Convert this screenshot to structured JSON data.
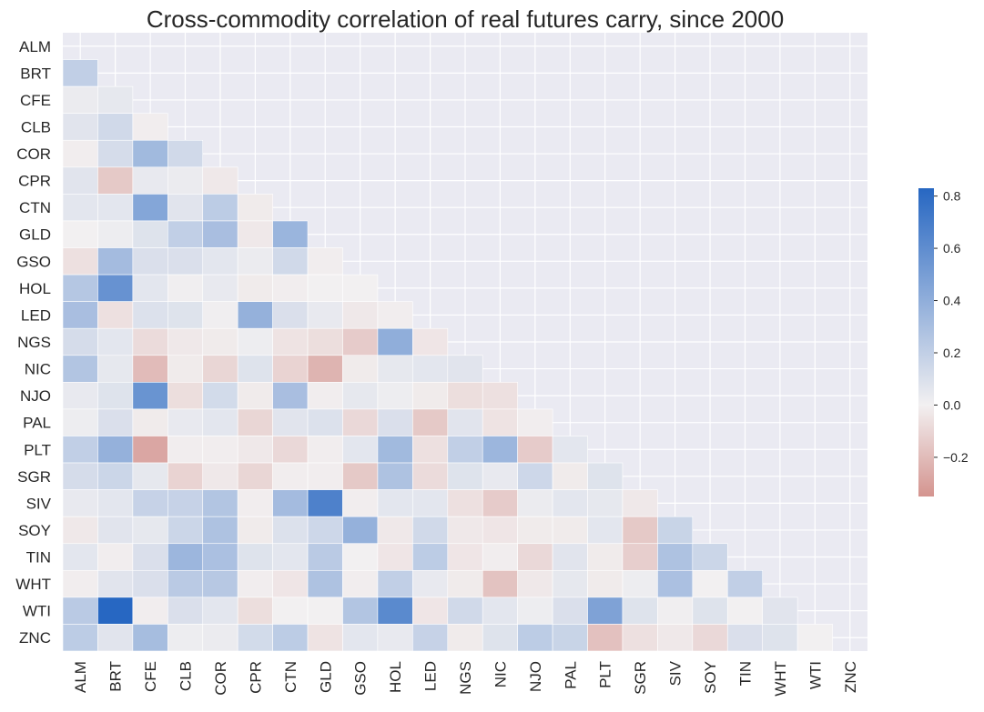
{
  "chart_data": {
    "type": "heatmap",
    "title": "Cross-commodity correlation of real futures carry, since 2000",
    "labels": [
      "ALM",
      "BRT",
      "CFE",
      "CLB",
      "COR",
      "CPR",
      "CTN",
      "GLD",
      "GSO",
      "HOL",
      "LED",
      "NGS",
      "NIC",
      "NJO",
      "PAL",
      "PLT",
      "SGR",
      "SIV",
      "SOY",
      "TIN",
      "WHT",
      "WTI",
      "ZNC"
    ],
    "mask": "upper-triangle-and-diagonal",
    "colorbar": {
      "min": -0.35,
      "max": 0.83,
      "ticks": [
        0.8,
        0.6,
        0.4,
        0.2,
        0.0,
        -0.2
      ],
      "tick_labels": [
        "0.8",
        "0.6",
        "0.4",
        "0.2",
        "0.0",
        "−0.2"
      ],
      "low_color": "#d4948f",
      "mid_color": "#f2f0f1",
      "high_color": "#2767c2",
      "placement": "right"
    },
    "lower_triangle": [
      [
        0.2
      ],
      [
        0.03,
        0.05
      ],
      [
        0.07,
        0.14,
        -0.01
      ],
      [
        -0.01,
        0.12,
        0.33,
        0.14
      ],
      [
        0.07,
        -0.15,
        0.04,
        0.03,
        -0.03
      ],
      [
        0.06,
        0.06,
        0.45,
        0.07,
        0.22,
        -0.02
      ],
      [
        0.0,
        0.02,
        0.08,
        0.2,
        0.3,
        -0.03,
        0.36
      ],
      [
        -0.06,
        0.32,
        0.1,
        0.1,
        0.06,
        0.03,
        0.14,
        -0.01
      ],
      [
        0.25,
        0.57,
        0.06,
        0.01,
        0.04,
        -0.02,
        -0.01,
        0.0,
        0.0
      ],
      [
        0.3,
        -0.06,
        0.09,
        0.08,
        0.01,
        0.38,
        0.1,
        0.04,
        -0.03,
        -0.01
      ],
      [
        0.12,
        0.06,
        -0.08,
        -0.03,
        -0.02,
        0.02,
        -0.05,
        -0.07,
        -0.14,
        0.4,
        -0.04
      ],
      [
        0.26,
        0.05,
        -0.2,
        -0.02,
        -0.1,
        0.08,
        -0.11,
        -0.23,
        -0.02,
        0.05,
        0.06,
        0.07
      ],
      [
        0.04,
        0.08,
        0.56,
        -0.07,
        0.13,
        -0.02,
        0.3,
        -0.01,
        0.05,
        0.02,
        -0.02,
        -0.07,
        -0.06
      ],
      [
        0.02,
        0.1,
        -0.02,
        0.04,
        0.06,
        -0.1,
        0.07,
        0.09,
        -0.09,
        0.1,
        -0.15,
        0.07,
        -0.05,
        -0.01
      ],
      [
        0.2,
        0.38,
        -0.28,
        -0.01,
        -0.01,
        -0.03,
        -0.09,
        -0.01,
        0.06,
        0.33,
        -0.06,
        0.2,
        0.35,
        -0.14,
        0.06
      ],
      [
        0.12,
        0.16,
        0.05,
        -0.11,
        -0.03,
        -0.1,
        -0.01,
        -0.01,
        -0.15,
        0.28,
        -0.08,
        0.08,
        0.04,
        0.15,
        -0.02,
        0.08
      ],
      [
        0.04,
        0.06,
        0.18,
        0.18,
        0.26,
        -0.01,
        0.32,
        0.67,
        -0.01,
        0.06,
        0.06,
        -0.06,
        -0.14,
        0.03,
        0.06,
        0.05,
        -0.03
      ],
      [
        -0.03,
        0.07,
        0.05,
        0.16,
        0.28,
        -0.02,
        0.09,
        0.15,
        0.38,
        -0.03,
        0.14,
        -0.03,
        -0.04,
        -0.02,
        -0.02,
        0.06,
        -0.15,
        0.17
      ],
      [
        0.06,
        -0.01,
        0.1,
        0.35,
        0.29,
        0.08,
        0.06,
        0.23,
        0.0,
        -0.04,
        0.22,
        -0.04,
        -0.01,
        -0.09,
        0.07,
        -0.02,
        -0.13,
        0.28,
        0.16
      ],
      [
        -0.01,
        0.07,
        0.1,
        0.23,
        0.24,
        -0.01,
        -0.04,
        0.28,
        -0.01,
        0.2,
        0.04,
        -0.02,
        -0.17,
        -0.03,
        0.05,
        -0.02,
        0.02,
        0.29,
        0.0,
        0.2
      ],
      [
        0.23,
        0.83,
        -0.01,
        0.1,
        0.06,
        -0.07,
        0.0,
        0.0,
        0.26,
        0.62,
        -0.04,
        0.14,
        0.06,
        0.02,
        0.1,
        0.47,
        0.08,
        0.01,
        0.08,
        0.0,
        0.07
      ],
      [
        0.22,
        0.07,
        0.31,
        0.02,
        0.03,
        0.13,
        0.22,
        -0.05,
        0.06,
        0.04,
        0.18,
        -0.02,
        0.08,
        0.22,
        0.17,
        -0.18,
        -0.06,
        -0.03,
        -0.09,
        0.1,
        0.08,
        0.0
      ]
    ]
  }
}
